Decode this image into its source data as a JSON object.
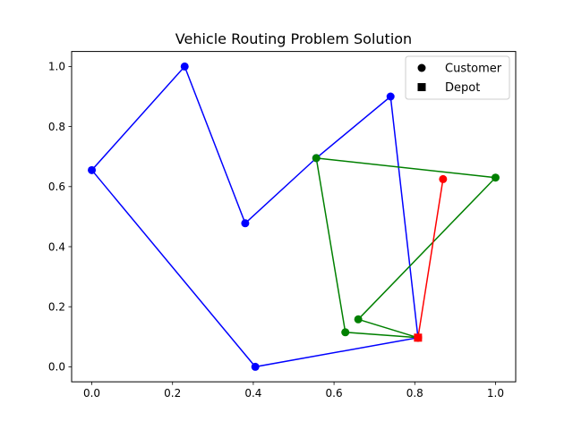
{
  "chart_data": {
    "type": "scatter",
    "title": "Vehicle Routing Problem Solution",
    "xlabel": "",
    "ylabel": "",
    "xlim": [
      -0.05,
      1.05
    ],
    "ylim": [
      -0.05,
      1.05
    ],
    "xticks": [
      0.0,
      0.2,
      0.4,
      0.6,
      0.8,
      1.0
    ],
    "yticks": [
      0.0,
      0.2,
      0.4,
      0.6,
      0.8,
      1.0
    ],
    "xtick_labels": [
      "0.0",
      "0.2",
      "0.4",
      "0.6",
      "0.8",
      "1.0"
    ],
    "ytick_labels": [
      "0.0",
      "0.2",
      "0.4",
      "0.6",
      "0.8",
      "1.0"
    ],
    "grid": false,
    "legend": {
      "placement": "top-right",
      "entries": [
        {
          "label": "Customer",
          "marker": "circle"
        },
        {
          "label": "Depot",
          "marker": "square"
        }
      ]
    },
    "routes": [
      {
        "color": "#0000ff",
        "points": [
          {
            "x": 0.808,
            "y": 0.097
          },
          {
            "x": 0.74,
            "y": 0.9
          },
          {
            "x": 0.556,
            "y": 0.695
          },
          {
            "x": 0.38,
            "y": 0.478
          },
          {
            "x": 0.23,
            "y": 1.0
          },
          {
            "x": 0.0,
            "y": 0.655
          },
          {
            "x": 0.405,
            "y": 0.0
          },
          {
            "x": 0.808,
            "y": 0.097
          }
        ]
      },
      {
        "color": "#008000",
        "points": [
          {
            "x": 0.808,
            "y": 0.097
          },
          {
            "x": 0.628,
            "y": 0.115
          },
          {
            "x": 0.556,
            "y": 0.695
          },
          {
            "x": 1.0,
            "y": 0.63
          },
          {
            "x": 0.66,
            "y": 0.158
          },
          {
            "x": 0.808,
            "y": 0.097
          }
        ]
      },
      {
        "color": "#ff0000",
        "points": [
          {
            "x": 0.808,
            "y": 0.097
          },
          {
            "x": 0.87,
            "y": 0.625
          },
          {
            "x": 0.808,
            "y": 0.097
          }
        ]
      }
    ],
    "depot": {
      "x": 0.808,
      "y": 0.097
    }
  }
}
